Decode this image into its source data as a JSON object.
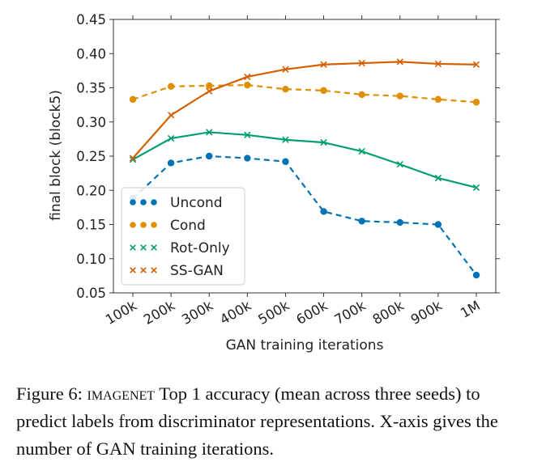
{
  "chart_data": {
    "type": "line",
    "xlabel": "GAN training iterations",
    "ylabel": "final block (block5)",
    "categories": [
      "100k",
      "200k",
      "300k",
      "400k",
      "500k",
      "600k",
      "700k",
      "800k",
      "900k",
      "1M"
    ],
    "ylim": [
      0.05,
      0.45
    ],
    "yticks": [
      "0.05",
      "0.10",
      "0.15",
      "0.20",
      "0.25",
      "0.30",
      "0.35",
      "0.40",
      "0.45"
    ],
    "grid": false,
    "legend_position": "lower-left",
    "series": [
      {
        "name": "Uncond",
        "color": "#0173b2",
        "line": "dashed",
        "marker": "dot",
        "values": [
          0.188,
          0.24,
          0.25,
          0.247,
          0.242,
          0.169,
          0.155,
          0.153,
          0.15,
          0.076
        ]
      },
      {
        "name": "Cond",
        "color": "#de8f05",
        "line": "dashed",
        "marker": "dot",
        "values": [
          0.333,
          0.352,
          0.353,
          0.354,
          0.348,
          0.346,
          0.34,
          0.338,
          0.333,
          0.329
        ]
      },
      {
        "name": "Rot-Only",
        "color": "#029e73",
        "line": "solid",
        "marker": "x",
        "values": [
          0.245,
          0.276,
          0.285,
          0.281,
          0.274,
          0.27,
          0.257,
          0.238,
          0.218,
          0.204
        ]
      },
      {
        "name": "SS-GAN",
        "color": "#d55e00",
        "line": "solid",
        "marker": "x",
        "values": [
          0.247,
          0.31,
          0.345,
          0.366,
          0.377,
          0.384,
          0.386,
          0.388,
          0.385,
          0.384
        ]
      }
    ]
  },
  "caption": {
    "prefix": "Figure 6: ",
    "dataset": "imagenet",
    "text": " Top 1 accuracy (mean across three seeds) to predict labels from discriminator representations. X-axis gives the number of GAN training iterations."
  }
}
